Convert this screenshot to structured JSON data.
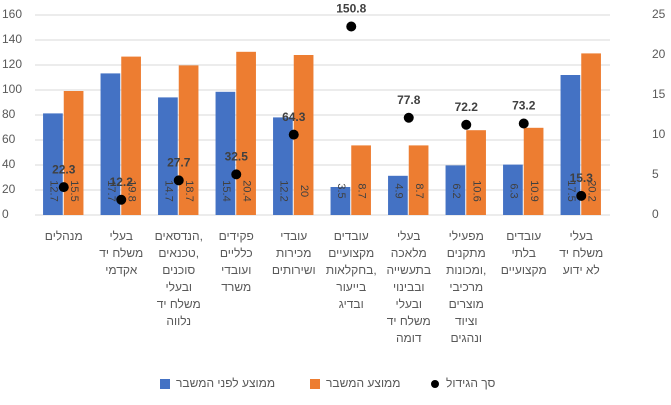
{
  "chart_data": {
    "type": "bar",
    "categories": [
      [
        "מנהלים"
      ],
      [
        "בעלי",
        "משלח יד",
        "אקדמי"
      ],
      [
        "הנדסאים,",
        "טכנאים,",
        "סוכנים",
        "ובעלי",
        "משלח יד",
        "נלווה"
      ],
      [
        "פקידים",
        "כלליים",
        "ועובדי",
        "משרד"
      ],
      [
        "עובדי",
        "מכירות",
        "ושירותים"
      ],
      [
        "עובדים",
        "מקצועיים",
        "בחקלאות,",
        "בייעור",
        "ובדיג"
      ],
      [
        "בעלי",
        "מלאכה",
        "בתעשייה",
        "ובבינוי",
        "ובעלי",
        "משלח יד",
        "דומה"
      ],
      [
        "מפעילי",
        "מתקנים",
        "ומכונות,",
        "מרכיבי",
        "מוצרים",
        "וציוד",
        "ונהגים"
      ],
      [
        "עובדים",
        "בלתי",
        "מקצועיים"
      ],
      [
        "בעלי",
        "משלח יד",
        "לא ידוע"
      ]
    ],
    "series": [
      {
        "name": "ממוצע לפני המשבר",
        "color": "#4472c4",
        "axis": "y2",
        "values": [
          12.7,
          17.7,
          14.7,
          15.4,
          12.2,
          3.5,
          4.9,
          6.2,
          6.3,
          17.5
        ]
      },
      {
        "name": "ממוצע המשבר",
        "color": "#ed7d31",
        "axis": "y2",
        "values": [
          15.5,
          19.8,
          18.7,
          20.4,
          20.0,
          8.7,
          8.7,
          10.6,
          10.9,
          20.2
        ]
      },
      {
        "name": "סך הגידול",
        "color": "#000000",
        "type": "scatter",
        "values": [
          22.3,
          12.2,
          27.7,
          32.5,
          64.3,
          150.8,
          77.8,
          72.2,
          73.2,
          15.3
        ]
      }
    ],
    "ylim": [
      0,
      160
    ],
    "yticks": [
      0,
      20,
      40,
      60,
      80,
      100,
      120,
      140,
      160
    ],
    "y2lim": [
      0,
      25
    ],
    "y2ticks": [
      0,
      5,
      10,
      15,
      20,
      25
    ],
    "grid": true,
    "legend": "bottom"
  }
}
